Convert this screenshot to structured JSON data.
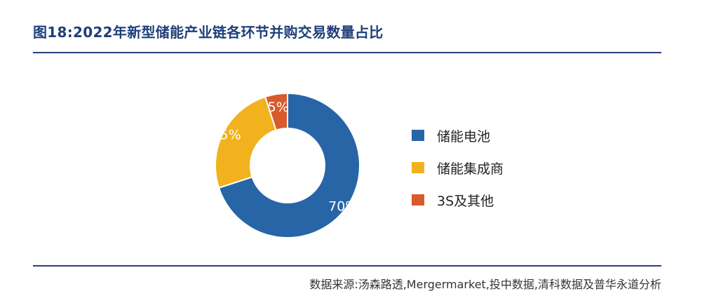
{
  "header": {
    "title": "图18:2022年新型储能产业链各环节并购交易数量占比"
  },
  "footer": {
    "source": "数据来源:汤森路透,Mergermarket,投中数据,清科数据及普华永道分析"
  },
  "colors": {
    "rule": "#2b3f7d",
    "title": "#1f3f7a"
  },
  "chart_data": {
    "type": "pie",
    "donut": true,
    "title": "图18:2022年新型储能产业链各环节并购交易数量占比",
    "legend_position": "right",
    "series": [
      {
        "name": "储能电池",
        "value": 70,
        "label": "70%",
        "color": "#2765a6"
      },
      {
        "name": "储能集成商",
        "value": 25,
        "label": "25%",
        "color": "#f2b21d"
      },
      {
        "name": "3S及其他",
        "value": 5,
        "label": "5%",
        "color": "#d95a2b"
      }
    ]
  }
}
